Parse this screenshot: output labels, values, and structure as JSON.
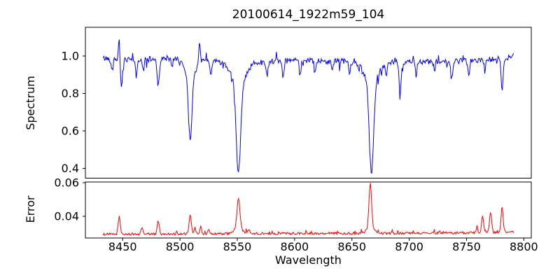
{
  "chart_data": {
    "type": "line",
    "title": "20100614_1922m59_104",
    "xlabel": "Wavelength",
    "background": "#ffffff",
    "frame_color": "#000000",
    "xlim": [
      8417.5,
      8806.5
    ],
    "x_ticks": [
      8450,
      8500,
      8550,
      8600,
      8650,
      8700,
      8750,
      8800
    ],
    "x_tick_labels": [
      "8450",
      "8500",
      "8550",
      "8600",
      "8650",
      "8700",
      "8750",
      "8800"
    ],
    "panels": [
      {
        "name": "spectrum",
        "ylabel": "Spectrum",
        "color": "#0000ff",
        "ylim": [
          0.3477,
          1.1533
        ],
        "y_ticks": [
          0.4,
          0.6,
          0.8,
          1.0
        ],
        "y_tick_labels": [
          "0.4",
          "0.6",
          "0.8",
          "1.0"
        ],
        "x_start": 8433,
        "x_end": 8791,
        "n_points": 586,
        "continuum": [
          [
            8433,
            0.988
          ],
          [
            8455,
            0.978
          ],
          [
            8470,
            0.982
          ],
          [
            8500,
            0.985
          ],
          [
            8530,
            0.975
          ],
          [
            8560,
            0.972
          ],
          [
            8600,
            0.975
          ],
          [
            8640,
            0.972
          ],
          [
            8665,
            0.97
          ],
          [
            8700,
            0.968
          ],
          [
            8730,
            0.97
          ],
          [
            8760,
            0.975
          ],
          [
            8785,
            0.99
          ],
          [
            8791,
            1.005
          ]
        ],
        "noise": {
          "seed": 42,
          "amplitude": 0.015,
          "dip_prob": 0.07,
          "dip_max": 0.05,
          "spike_prob": 0.03,
          "spike_max": 0.035
        },
        "absorption_lines": [
          [
            8441,
            0.06,
            0.7
          ],
          [
            8449,
            0.16,
            0.9
          ],
          [
            8462,
            0.09,
            0.8
          ],
          [
            8468,
            0.06,
            0.7
          ],
          [
            8481,
            0.14,
            0.9
          ],
          [
            8493,
            0.05,
            0.7
          ],
          [
            8509,
            0.33,
            1.5
          ],
          [
            8509,
            0.09,
            4.5
          ],
          [
            8527,
            0.08,
            0.8
          ],
          [
            8551,
            0.48,
            1.9
          ],
          [
            8551,
            0.12,
            6.5
          ],
          [
            8576,
            0.08,
            0.8
          ],
          [
            8590,
            0.085,
            0.8
          ],
          [
            8605,
            0.055,
            0.7
          ],
          [
            8618,
            0.07,
            0.8
          ],
          [
            8633,
            0.05,
            0.7
          ],
          [
            8648,
            0.07,
            0.8
          ],
          [
            8667,
            0.48,
            1.9
          ],
          [
            8667,
            0.11,
            6.0
          ],
          [
            8680,
            0.055,
            0.7
          ],
          [
            8692,
            0.17,
            0.9
          ],
          [
            8706,
            0.07,
            0.7
          ],
          [
            8722,
            0.05,
            0.7
          ],
          [
            8737,
            0.09,
            0.9
          ],
          [
            8752,
            0.07,
            0.7
          ],
          [
            8766,
            0.05,
            0.7
          ],
          [
            8781,
            0.17,
            0.9
          ]
        ],
        "emission_spikes": [
          [
            8447,
            0.13,
            0.6
          ],
          [
            8517,
            0.12,
            0.6
          ]
        ]
      },
      {
        "name": "error",
        "ylabel": "Error",
        "color": "#ff0000",
        "ylim": [
          0.0271,
          0.0604
        ],
        "y_ticks": [
          0.04,
          0.06
        ],
        "y_tick_labels": [
          "0.04",
          "0.06"
        ],
        "x_start": 8433,
        "x_end": 8791,
        "n_points": 586,
        "baseline": [
          [
            8433,
            0.0293
          ],
          [
            8500,
            0.0295
          ],
          [
            8560,
            0.0297
          ],
          [
            8620,
            0.0299
          ],
          [
            8680,
            0.0299
          ],
          [
            8740,
            0.0301
          ],
          [
            8791,
            0.0306
          ]
        ],
        "noise": {
          "seed": 1234,
          "amplitude": 0.0007,
          "bump_prob": 0.06,
          "bump_max": 0.002
        },
        "peaks": [
          [
            8447,
            0.0105,
            0.9
          ],
          [
            8467,
            0.0042,
            0.8
          ],
          [
            8481,
            0.0078,
            0.9
          ],
          [
            8509,
            0.0108,
            1.0
          ],
          [
            8513,
            0.0038,
            0.7
          ],
          [
            8518,
            0.0044,
            0.7
          ],
          [
            8525,
            0.0032,
            0.7
          ],
          [
            8551,
            0.017,
            1.2
          ],
          [
            8551,
            0.004,
            3.2
          ],
          [
            8560,
            0.0018,
            0.8
          ],
          [
            8666,
            0.0255,
            1.1
          ],
          [
            8666,
            0.004,
            3.0
          ],
          [
            8759,
            0.0032,
            0.8
          ],
          [
            8764,
            0.0098,
            0.9
          ],
          [
            8771,
            0.0122,
            0.9
          ],
          [
            8781,
            0.0148,
            0.9
          ]
        ]
      }
    ]
  }
}
